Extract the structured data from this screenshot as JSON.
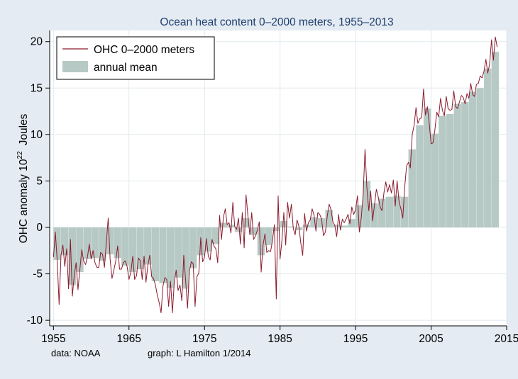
{
  "colors": {
    "background": "#e4ebf2",
    "plot_area": "#ffffff",
    "title": "#1f3f6e",
    "bar_fill": "#b7c9c4",
    "line": "#8b1c2e",
    "grid": "#e2e8ee",
    "axis": "#000000"
  },
  "chart_data": {
    "type": "bar",
    "title": "Ocean heat content 0–2000 meters, 1955–2013",
    "xlabel": "",
    "ylabel_main": "OHC anomaly 10",
    "ylabel_exp": "22",
    "ylabel_unit": "Joules",
    "xlim": [
      1954.5,
      2015
    ],
    "ylim": [
      -10.6,
      21.2
    ],
    "x_ticks": [
      1955,
      1965,
      1975,
      1985,
      1995,
      2005,
      2015
    ],
    "y_ticks": [
      -10,
      -5,
      0,
      5,
      10,
      15,
      20
    ],
    "grid": true,
    "legend_position": "top-left",
    "legend": [
      {
        "label": "OHC 0–2000 meters",
        "kind": "line"
      },
      {
        "label": "annual mean",
        "kind": "bar"
      }
    ],
    "footer_left": "data:  NOAA",
    "footer_right": "graph: L Hamilton 1/2014",
    "series": [
      {
        "name": "annual mean",
        "kind": "bar",
        "x": [
          1955,
          1956,
          1957,
          1958,
          1959,
          1960,
          1961,
          1962,
          1963,
          1964,
          1965,
          1966,
          1967,
          1968,
          1969,
          1970,
          1971,
          1972,
          1973,
          1974,
          1975,
          1976,
          1977,
          1978,
          1979,
          1980,
          1981,
          1982,
          1983,
          1984,
          1985,
          1986,
          1987,
          1988,
          1989,
          1990,
          1991,
          1992,
          1993,
          1994,
          1995,
          1996,
          1997,
          1998,
          1999,
          2000,
          2001,
          2002,
          2003,
          2004,
          2005,
          2006,
          2007,
          2008,
          2009,
          2010,
          2011,
          2012,
          2013
        ],
        "values": [
          -3.5,
          -3.0,
          -6.2,
          -4.8,
          -3.4,
          -3.3,
          -3.6,
          -2.9,
          -3.3,
          -4.1,
          -4.8,
          -4.5,
          -4.0,
          -5.8,
          -6.0,
          -6.5,
          -5.4,
          -6.6,
          -4.4,
          -3.0,
          -2.6,
          -1.8,
          0.5,
          0.3,
          -0.5,
          1.0,
          -0.8,
          -3.0,
          -1.9,
          -0.4,
          0.7,
          0.1,
          -0.3,
          0.3,
          1.1,
          1.0,
          1.9,
          0.3,
          0.2,
          0.9,
          2.4,
          5.0,
          2.6,
          3.1,
          3.3,
          3.4,
          3.3,
          8.4,
          11.0,
          12.8,
          10.1,
          12.0,
          12.2,
          13.3,
          13.5,
          14.6,
          15.0,
          17.1,
          18.9
        ]
      },
      {
        "name": "OHC 0–2000 meters",
        "kind": "line",
        "x": [
          1955.0,
          1955.25,
          1955.5,
          1955.75,
          1956.0,
          1956.25,
          1956.5,
          1956.75,
          1957.0,
          1957.25,
          1957.5,
          1957.75,
          1958.0,
          1958.25,
          1958.5,
          1958.75,
          1959.0,
          1959.25,
          1959.5,
          1959.75,
          1960.0,
          1960.25,
          1960.5,
          1960.75,
          1961.0,
          1961.25,
          1961.5,
          1961.75,
          1962.0,
          1962.25,
          1962.5,
          1962.75,
          1963.0,
          1963.25,
          1963.5,
          1963.75,
          1964.0,
          1964.25,
          1964.5,
          1964.75,
          1965.0,
          1965.25,
          1965.5,
          1965.75,
          1966.0,
          1966.25,
          1966.5,
          1966.75,
          1967.0,
          1967.25,
          1967.5,
          1967.75,
          1968.0,
          1968.25,
          1968.5,
          1968.75,
          1969.0,
          1969.25,
          1969.5,
          1969.75,
          1970.0,
          1970.25,
          1970.5,
          1970.75,
          1971.0,
          1971.25,
          1971.5,
          1971.75,
          1972.0,
          1972.25,
          1972.5,
          1972.75,
          1973.0,
          1973.25,
          1973.5,
          1973.75,
          1974.0,
          1974.25,
          1974.5,
          1974.75,
          1975.0,
          1975.25,
          1975.5,
          1975.75,
          1976.0,
          1976.25,
          1976.5,
          1976.75,
          1977.0,
          1977.25,
          1977.5,
          1977.75,
          1978.0,
          1978.25,
          1978.5,
          1978.75,
          1979.0,
          1979.25,
          1979.5,
          1979.75,
          1980.0,
          1980.25,
          1980.5,
          1980.75,
          1981.0,
          1981.25,
          1981.5,
          1981.75,
          1982.0,
          1982.25,
          1982.5,
          1982.75,
          1983.0,
          1983.25,
          1983.5,
          1983.75,
          1984.0,
          1984.25,
          1984.5,
          1984.75,
          1985.0,
          1985.25,
          1985.5,
          1985.75,
          1986.0,
          1986.25,
          1986.5,
          1986.75,
          1987.0,
          1987.25,
          1987.5,
          1987.75,
          1988.0,
          1988.25,
          1988.5,
          1988.75,
          1989.0,
          1989.25,
          1989.5,
          1989.75,
          1990.0,
          1990.25,
          1990.5,
          1990.75,
          1991.0,
          1991.25,
          1991.5,
          1991.75,
          1992.0,
          1992.25,
          1992.5,
          1992.75,
          1993.0,
          1993.25,
          1993.5,
          1993.75,
          1994.0,
          1994.25,
          1994.5,
          1994.75,
          1995.0,
          1995.25,
          1995.5,
          1995.75,
          1996.0,
          1996.25,
          1996.5,
          1996.75,
          1997.0,
          1997.25,
          1997.5,
          1997.75,
          1998.0,
          1998.25,
          1998.5,
          1998.75,
          1999.0,
          1999.25,
          1999.5,
          1999.75,
          2000.0,
          2000.25,
          2000.5,
          2000.75,
          2001.0,
          2001.25,
          2001.5,
          2001.75,
          2002.0,
          2002.25,
          2002.5,
          2002.75,
          2003.0,
          2003.25,
          2003.5,
          2003.75,
          2004.0,
          2004.25,
          2004.5,
          2004.75,
          2005.0,
          2005.25,
          2005.5,
          2005.75,
          2006.0,
          2006.25,
          2006.5,
          2006.75,
          2007.0,
          2007.25,
          2007.5,
          2007.75,
          2008.0,
          2008.25,
          2008.5,
          2008.75,
          2009.0,
          2009.25,
          2009.5,
          2009.75,
          2010.0,
          2010.25,
          2010.5,
          2010.75,
          2011.0,
          2011.25,
          2011.5,
          2011.75,
          2012.0,
          2012.25,
          2012.5,
          2012.75,
          2013.0,
          2013.25,
          2013.5,
          2013.75
        ],
        "values": [
          -3.2,
          -0.5,
          -3.6,
          -8.3,
          -3.0,
          -1.9,
          -4.2,
          -2.3,
          -6.6,
          -1.3,
          -7.4,
          -5.2,
          -3.8,
          -6.7,
          -4.5,
          -2.4,
          -3.6,
          -4.0,
          -3.2,
          -1.8,
          -3.4,
          -2.5,
          -3.8,
          -4.3,
          -4.3,
          -2.7,
          -2.9,
          -4.3,
          -1.6,
          1.0,
          -3.4,
          -5.5,
          -4.6,
          -3.6,
          -2.0,
          -4.5,
          -4.5,
          -3.8,
          -3.6,
          -4.2,
          -5.6,
          -4.8,
          -3.1,
          -5.6,
          -5.2,
          -3.3,
          -3.6,
          -5.6,
          -3.1,
          -5.9,
          -4.1,
          -3.0,
          -5.3,
          -5.5,
          -6.2,
          -7.3,
          -8.1,
          -9.2,
          -6.3,
          -5.4,
          -5.6,
          -8.5,
          -5.8,
          -9.2,
          -5.8,
          -4.6,
          -6.8,
          -6.2,
          -7.9,
          -3.0,
          -5.7,
          -8.7,
          -4.7,
          -3.7,
          -3.9,
          -8.5,
          -5.3,
          -4.9,
          -1.1,
          -3.7,
          -3.2,
          -1.2,
          -3.1,
          -3.5,
          -1.3,
          -2.0,
          -2.3,
          -3.8,
          1.3,
          -1.3,
          1.1,
          2.0,
          0.3,
          0.5,
          -0.6,
          2.7,
          0.1,
          -0.2,
          1.0,
          -1.8,
          1.6,
          -2.2,
          3.5,
          1.2,
          -0.8,
          1.6,
          -1.3,
          -0.9,
          -0.3,
          0.6,
          -4.8,
          -1.9,
          -0.7,
          -2.7,
          -2.5,
          -2.6,
          -1.4,
          0.3,
          -7.7,
          3.4,
          -3.4,
          -1.4,
          1.6,
          -1.9,
          2.7,
          1.0,
          2.5,
          -0.1,
          -0.8,
          0.8,
          0.1,
          -1.7,
          -3.0,
          1.5,
          -0.4,
          0.5,
          0.8,
          2.0,
          1.3,
          -0.4,
          1.6,
          1.4,
          0.9,
          -0.9,
          -0.5,
          1.2,
          2.5,
          1.9,
          0.6,
          0.2,
          -1.0,
          1.4,
          -0.3,
          0.9,
          0.5,
          0.9,
          1.4,
          0.4,
          2.2,
          1.4,
          1.9,
          3.4,
          -0.5,
          1.0,
          3.5,
          8.4,
          4.2,
          1.8,
          3.9,
          0.7,
          2.4,
          4.1,
          3.3,
          2.2,
          1.8,
          3.7,
          4.9,
          3.8,
          4.6,
          3.7,
          5.1,
          2.3,
          5.0,
          2.8,
          2.0,
          1.0,
          4.3,
          6.6,
          7.0,
          6.4,
          10.0,
          11.0,
          12.9,
          11.2,
          11.7,
          11.8,
          14.9,
          12.1,
          13.0,
          11.2,
          9.0,
          9.1,
          10.5,
          12.4,
          11.9,
          13.9,
          12.6,
          12.0,
          14.1,
          12.8,
          12.6,
          12.7,
          14.7,
          13.0,
          12.8,
          13.5,
          14.2,
          14.0,
          13.3,
          14.4,
          13.9,
          15.5,
          14.3,
          14.1,
          15.4,
          15.5,
          16.3,
          16.1,
          16.8,
          18.1,
          16.6,
          17.6,
          20.2,
          18.0,
          20.5,
          19.4
        ]
      }
    ]
  }
}
